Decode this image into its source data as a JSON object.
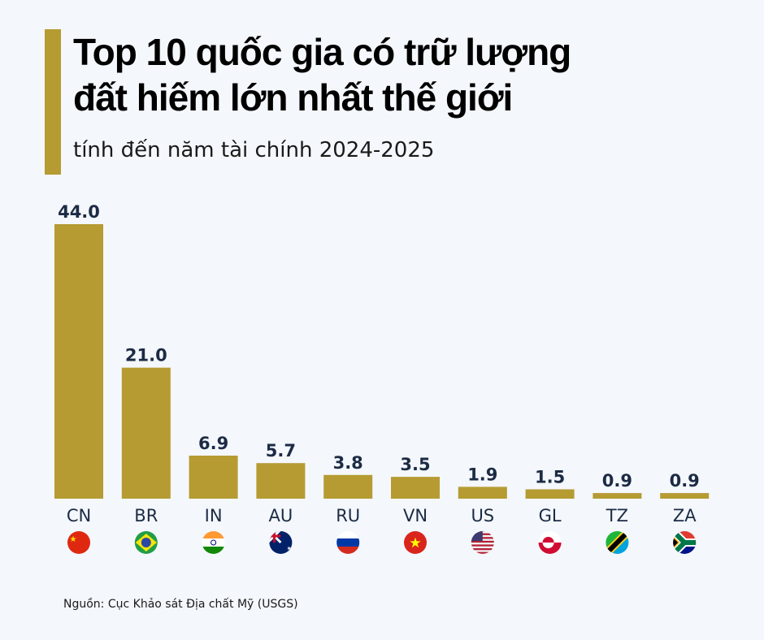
{
  "title_lines": [
    "Top 10 quốc gia có trữ lượng",
    "đất hiếm lớn nhất thế giới"
  ],
  "subtitle": "tính đến năm tài chính 2024-2025",
  "source": "Nguồn: Cục Khảo sát Địa chất Mỹ (USGS)",
  "colors": {
    "bar": "#b59b32",
    "accent": "#b59b32",
    "label": "#1c2b45"
  },
  "chart_data": {
    "type": "bar",
    "title": "Top 10 quốc gia có trữ lượng đất hiếm lớn nhất thế giới",
    "subtitle": "tính đến năm tài chính 2024-2025",
    "categories": [
      "CN",
      "BR",
      "IN",
      "AU",
      "RU",
      "VN",
      "US",
      "GL",
      "TZ",
      "ZA"
    ],
    "values": [
      44.0,
      21.0,
      6.9,
      5.7,
      3.8,
      3.5,
      1.9,
      1.5,
      0.9,
      0.9
    ],
    "data_labels": [
      "44.0",
      "21.0",
      "6.9",
      "5.7",
      "3.8",
      "3.5",
      "1.9",
      "1.5",
      "0.9",
      "0.9"
    ],
    "flags": [
      "china-flag-icon",
      "brazil-flag-icon",
      "india-flag-icon",
      "australia-flag-icon",
      "russia-flag-icon",
      "vietnam-flag-icon",
      "usa-flag-icon",
      "greenland-flag-icon",
      "tanzania-flag-icon",
      "south-africa-flag-icon"
    ],
    "ylim": [
      0,
      44
    ],
    "grid": false,
    "legend": "none"
  }
}
